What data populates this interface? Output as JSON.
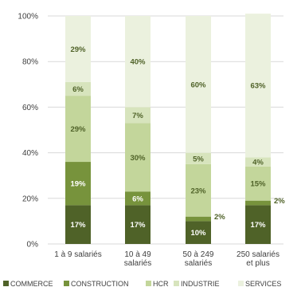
{
  "chart_data": {
    "type": "bar",
    "stacked": true,
    "categories": [
      [
        "1 à 9 salariés"
      ],
      [
        "10 à 49",
        "salariés"
      ],
      [
        "50 à 249",
        "salariés"
      ],
      [
        "250 salariés",
        "et plus"
      ]
    ],
    "series": [
      {
        "name": "COMMERCE",
        "color": "#4f6228",
        "values": [
          17,
          17,
          10,
          17
        ],
        "labels": [
          "17%",
          "17%",
          "10%",
          "17%"
        ],
        "label_color": "#ffffff"
      },
      {
        "name": "CONSTRUCTION",
        "color": "#77933c",
        "values": [
          19,
          6,
          2,
          2
        ],
        "labels": [
          "19%",
          "6%",
          "2%",
          "2%"
        ],
        "label_color": "#ffffff"
      },
      {
        "name": "HCR",
        "color": "#c3d69b",
        "values": [
          29,
          30,
          23,
          15
        ],
        "labels": [
          "29%",
          "30%",
          "23%",
          "15%"
        ],
        "label_color": "#4f6228"
      },
      {
        "name": "INDUSTRIE",
        "color": "#d7e4bd",
        "values": [
          6,
          7,
          5,
          4
        ],
        "labels": [
          "6%",
          "7%",
          "5%",
          "4%"
        ],
        "label_color": "#4f6228"
      },
      {
        "name": "SERVICES",
        "color": "#ebf1de",
        "values": [
          29,
          40,
          60,
          63
        ],
        "labels": [
          "29%",
          "40%",
          "60%",
          "63%"
        ],
        "label_color": "#4f6228"
      }
    ],
    "y_ticks": [
      "0%",
      "20%",
      "40%",
      "60%",
      "80%",
      "100%"
    ],
    "ylim": [
      0,
      100
    ],
    "grid": true,
    "legend_position": "bottom",
    "title": "",
    "xlabel": "",
    "ylabel": ""
  }
}
